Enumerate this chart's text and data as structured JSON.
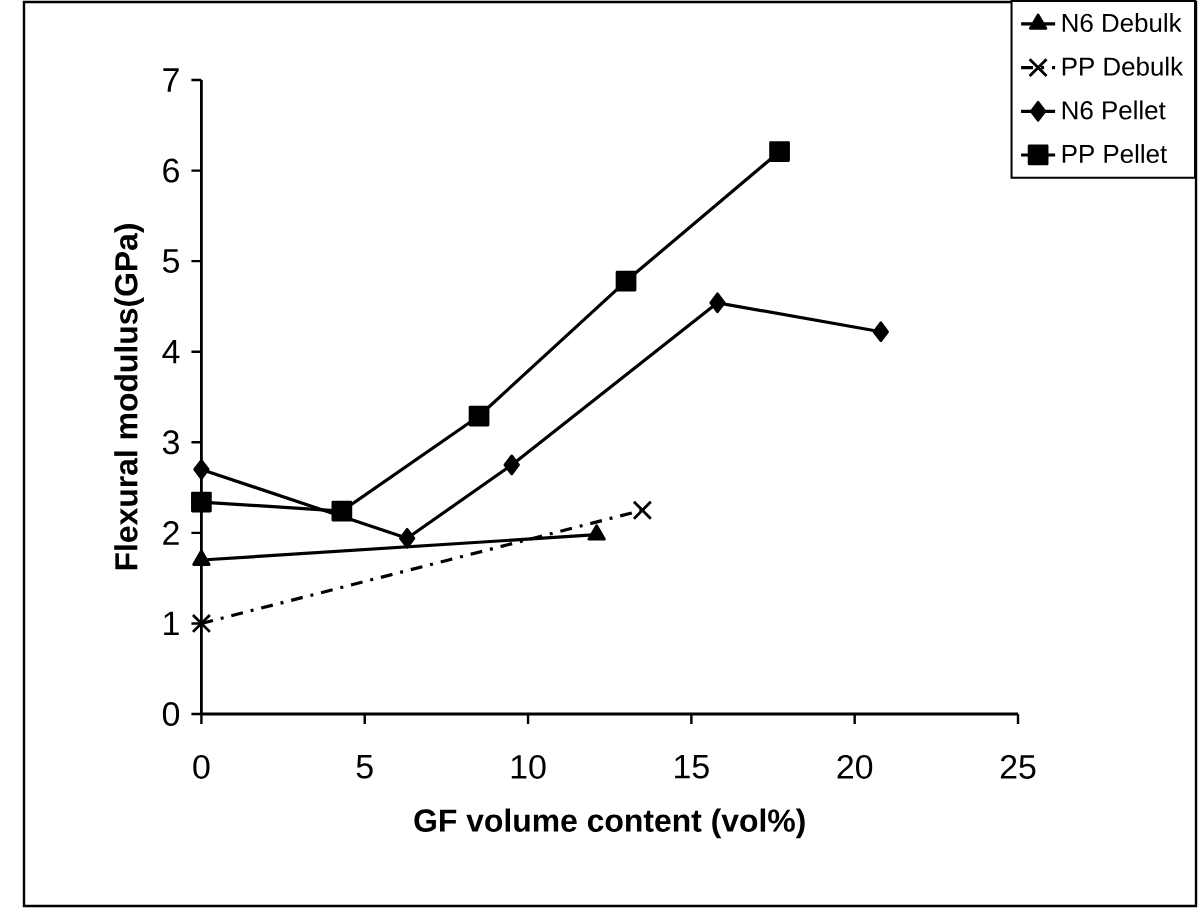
{
  "chart_data": {
    "type": "line",
    "xlabel": "GF volume content (vol%)",
    "ylabel": "Flexural modulus(GPa)",
    "xlim": [
      0,
      25
    ],
    "xticks": [
      0,
      5,
      10,
      15,
      20,
      25
    ],
    "ylim": [
      0,
      7
    ],
    "yticks": [
      0,
      1,
      2,
      3,
      4,
      5,
      6,
      7
    ],
    "grid": false,
    "legend": "top right",
    "series": [
      {
        "name": "N6 Debulk",
        "color": "#000000",
        "marker": "triangle",
        "line_style": "solid",
        "x": [
          0,
          12.1
        ],
        "values": [
          1.7,
          1.98
        ]
      },
      {
        "name": "PP Debulk",
        "color": "#000000",
        "marker": "cross",
        "line_style": "dashed",
        "x": [
          0,
          13.5
        ],
        "values": [
          1.0,
          2.25
        ]
      },
      {
        "name": "N6 Pellet",
        "color": "#000000",
        "marker": "diamond",
        "line_style": "solid",
        "x": [
          0,
          6.3,
          9.5,
          15.8,
          20.8
        ],
        "values": [
          2.7,
          1.94,
          2.75,
          4.54,
          4.22
        ]
      },
      {
        "name": "PP Pellet",
        "color": "#000000",
        "marker": "square",
        "line_style": "solid",
        "x": [
          0,
          4.3,
          8.5,
          13.0,
          17.7
        ],
        "values": [
          2.34,
          2.24,
          3.29,
          4.78,
          6.21
        ]
      }
    ]
  }
}
